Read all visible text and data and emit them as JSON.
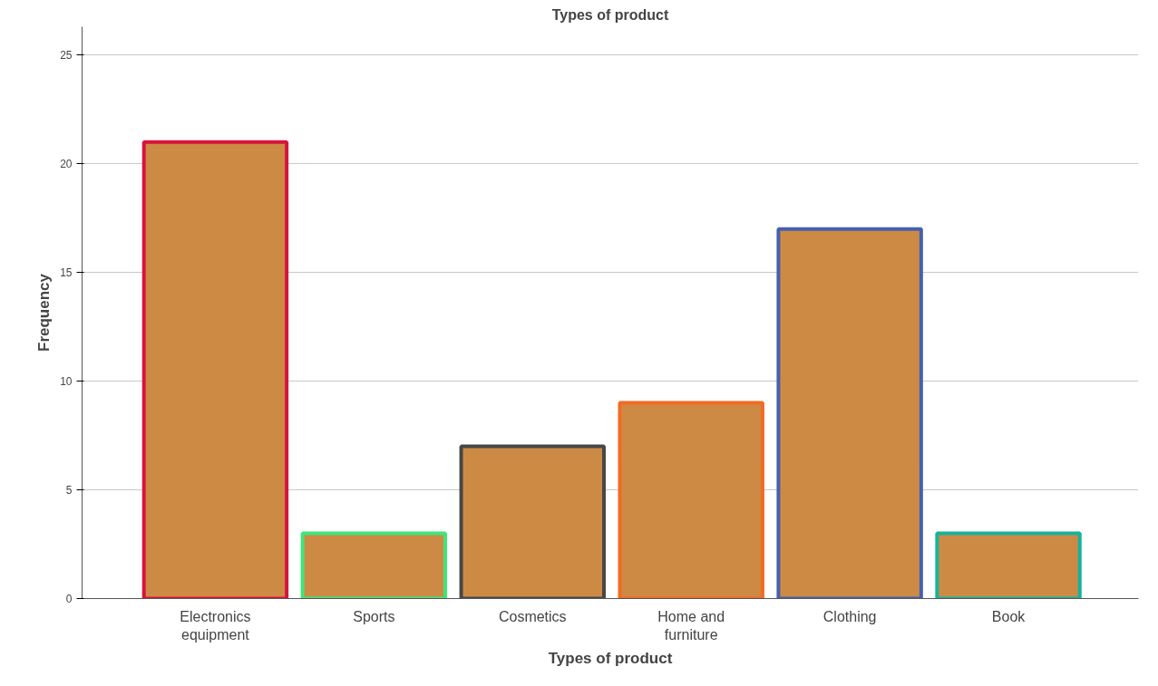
{
  "chart_data": {
    "type": "bar",
    "title": "Types of product",
    "xlabel": "Types of product",
    "ylabel": "Frequency",
    "categories": [
      "Electronics equipment",
      "Sports",
      "Cosmetics",
      "Home and furniture",
      "Clothing",
      "Book"
    ],
    "series": [
      {
        "color": "#cd8a45",
        "values": [
          21,
          3,
          7,
          9,
          17,
          3
        ]
      }
    ],
    "colors": [
      "#d7143c",
      "#3ee67a",
      "#474747",
      "#f26a24",
      "#4560ae",
      "#16b39c"
    ],
    "ylim": [
      0,
      26.3
    ],
    "yticks": [
      0,
      5,
      10,
      15,
      20,
      25
    ],
    "grid": "y"
  }
}
